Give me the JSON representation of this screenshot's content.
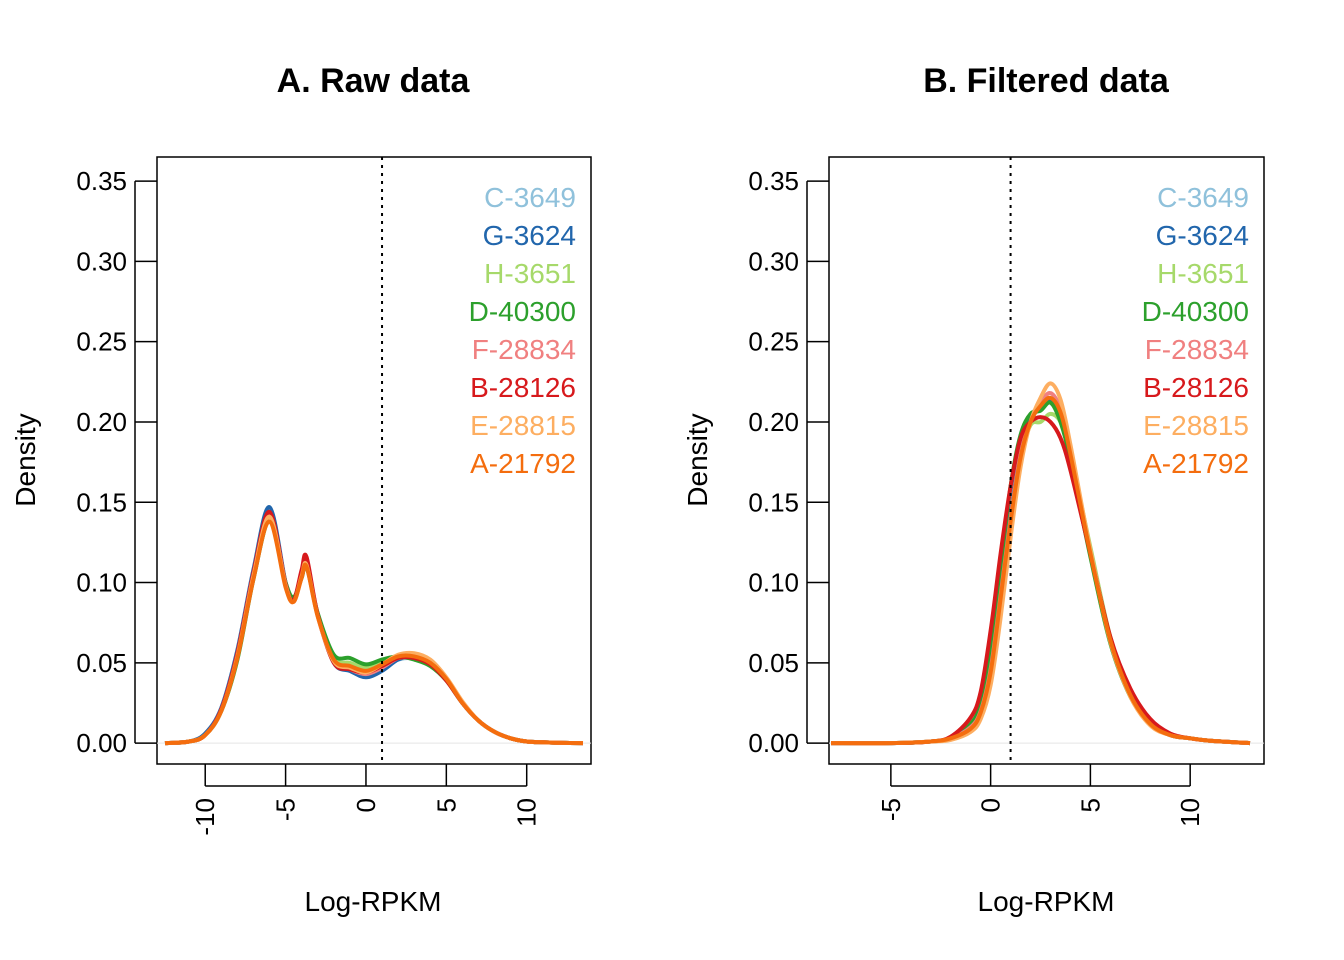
{
  "chart_data": [
    {
      "type": "line",
      "title": "A. Raw data",
      "xlabel": "Log-RPKM",
      "ylabel": "Density",
      "xlim": [
        -13,
        14
      ],
      "ylim": [
        -0.013,
        0.365
      ],
      "x_ticks": [
        -10,
        -5,
        0,
        5,
        10
      ],
      "y_ticks": [
        0.0,
        0.05,
        0.1,
        0.15,
        0.2,
        0.25,
        0.3,
        0.35
      ],
      "x_tick_labels": [
        "-10",
        "-5",
        "0",
        "5",
        "10"
      ],
      "y_tick_labels": [
        "0.00",
        "0.05",
        "0.10",
        "0.15",
        "0.20",
        "0.25",
        "0.30",
        "0.35"
      ],
      "vline": 1,
      "grid": false,
      "legend_position": "top-right",
      "series": [
        {
          "name": "C-3649",
          "color": "#8FC1DB",
          "x": [
            -12.5,
            -11,
            -10,
            -9,
            -8,
            -7,
            -6,
            -5,
            -4.5,
            -4,
            -3.7,
            -3,
            -2,
            -1,
            0,
            1,
            2,
            3,
            4,
            5,
            6,
            7,
            8,
            9,
            10,
            11,
            12,
            13.5
          ],
          "y": [
            0.0,
            0.001,
            0.005,
            0.02,
            0.055,
            0.105,
            0.144,
            0.1,
            0.088,
            0.105,
            0.112,
            0.08,
            0.051,
            0.047,
            0.043,
            0.047,
            0.052,
            0.053,
            0.05,
            0.04,
            0.025,
            0.014,
            0.007,
            0.003,
            0.001,
            0.0005,
            0.0002,
            0.0
          ]
        },
        {
          "name": "G-3624",
          "color": "#2166AC",
          "x": [
            -12.5,
            -11,
            -10,
            -9,
            -8,
            -7,
            -6,
            -5,
            -4.5,
            -4,
            -3.7,
            -3,
            -2,
            -1,
            0,
            1,
            2,
            3,
            4,
            5,
            6,
            7,
            8,
            9,
            10,
            11,
            12,
            13.5
          ],
          "y": [
            0.0,
            0.001,
            0.006,
            0.022,
            0.058,
            0.108,
            0.147,
            0.1,
            0.089,
            0.106,
            0.113,
            0.08,
            0.05,
            0.045,
            0.041,
            0.045,
            0.052,
            0.054,
            0.05,
            0.04,
            0.025,
            0.014,
            0.007,
            0.003,
            0.001,
            0.0005,
            0.0002,
            0.0
          ]
        },
        {
          "name": "H-3651",
          "color": "#A6D96A",
          "x": [
            -12.5,
            -11,
            -10,
            -9,
            -8,
            -7,
            -6,
            -5,
            -4.5,
            -4,
            -3.7,
            -3,
            -2,
            -1,
            0,
            1,
            2,
            3,
            4,
            5,
            6,
            7,
            8,
            9,
            10,
            11,
            12,
            13.5
          ],
          "y": [
            0.0,
            0.001,
            0.005,
            0.02,
            0.054,
            0.104,
            0.141,
            0.1,
            0.09,
            0.104,
            0.111,
            0.08,
            0.053,
            0.05,
            0.047,
            0.05,
            0.053,
            0.053,
            0.05,
            0.04,
            0.025,
            0.014,
            0.007,
            0.003,
            0.001,
            0.0005,
            0.0002,
            0.0
          ]
        },
        {
          "name": "D-40300",
          "color": "#2CA02C",
          "x": [
            -12.5,
            -11,
            -10,
            -9,
            -8,
            -7,
            -6,
            -5,
            -4.5,
            -4,
            -3.7,
            -3,
            -2,
            -1,
            0,
            1,
            2,
            3,
            4,
            5,
            6,
            7,
            8,
            9,
            10,
            11,
            12,
            13.5
          ],
          "y": [
            0.0,
            0.001,
            0.005,
            0.02,
            0.052,
            0.102,
            0.138,
            0.1,
            0.091,
            0.103,
            0.11,
            0.081,
            0.055,
            0.053,
            0.049,
            0.052,
            0.054,
            0.052,
            0.048,
            0.039,
            0.025,
            0.014,
            0.007,
            0.003,
            0.001,
            0.0005,
            0.0002,
            0.0
          ]
        },
        {
          "name": "F-28834",
          "color": "#F08080",
          "x": [
            -12.5,
            -11,
            -10,
            -9,
            -8,
            -7,
            -6,
            -5,
            -4.5,
            -4,
            -3.7,
            -3,
            -2,
            -1,
            0,
            1,
            2,
            3,
            4,
            5,
            6,
            7,
            8,
            9,
            10,
            11,
            12,
            13.5
          ],
          "y": [
            0.0,
            0.001,
            0.005,
            0.021,
            0.056,
            0.106,
            0.143,
            0.099,
            0.088,
            0.106,
            0.113,
            0.079,
            0.051,
            0.046,
            0.043,
            0.047,
            0.053,
            0.054,
            0.05,
            0.04,
            0.025,
            0.014,
            0.007,
            0.003,
            0.001,
            0.0005,
            0.0002,
            0.0
          ]
        },
        {
          "name": "B-28126",
          "color": "#D7191C",
          "x": [
            -12.5,
            -11,
            -10,
            -9,
            -8,
            -7,
            -6,
            -5,
            -4.5,
            -4,
            -3.7,
            -3,
            -2,
            -1,
            0,
            1,
            2,
            3,
            4,
            5,
            6,
            7,
            8,
            9,
            10,
            11,
            12,
            13.5
          ],
          "y": [
            0.0,
            0.001,
            0.005,
            0.021,
            0.056,
            0.106,
            0.144,
            0.099,
            0.089,
            0.108,
            0.116,
            0.08,
            0.05,
            0.046,
            0.044,
            0.048,
            0.053,
            0.053,
            0.049,
            0.039,
            0.025,
            0.014,
            0.007,
            0.003,
            0.001,
            0.0005,
            0.0002,
            0.0
          ]
        },
        {
          "name": "E-28815",
          "color": "#FDAE61",
          "x": [
            -12.5,
            -11,
            -10,
            -9,
            -8,
            -7,
            -6,
            -5,
            -4.5,
            -4,
            -3.7,
            -3,
            -2,
            -1,
            0,
            1,
            2,
            3,
            4,
            5,
            6,
            7,
            8,
            9,
            10,
            11,
            12,
            13.5
          ],
          "y": [
            0.0,
            0.001,
            0.005,
            0.02,
            0.054,
            0.104,
            0.141,
            0.098,
            0.088,
            0.104,
            0.111,
            0.079,
            0.051,
            0.047,
            0.044,
            0.049,
            0.055,
            0.056,
            0.052,
            0.041,
            0.026,
            0.014,
            0.007,
            0.003,
            0.001,
            0.0005,
            0.0002,
            0.0
          ]
        },
        {
          "name": "A-21792",
          "color": "#F46D0E",
          "x": [
            -12.5,
            -11,
            -10,
            -9,
            -8,
            -7,
            -6,
            -5,
            -4.5,
            -4,
            -3.7,
            -3,
            -2,
            -1,
            0,
            1,
            2,
            3,
            4,
            5,
            6,
            7,
            8,
            9,
            10,
            11,
            12,
            13.5
          ],
          "y": [
            0.0,
            0.001,
            0.005,
            0.02,
            0.053,
            0.102,
            0.138,
            0.097,
            0.088,
            0.103,
            0.11,
            0.079,
            0.052,
            0.048,
            0.045,
            0.049,
            0.054,
            0.054,
            0.05,
            0.04,
            0.025,
            0.014,
            0.007,
            0.003,
            0.001,
            0.0005,
            0.0002,
            0.0
          ]
        }
      ]
    },
    {
      "type": "line",
      "title": "B. Filtered data",
      "xlabel": "Log-RPKM",
      "ylabel": "Density",
      "xlim": [
        -8.1,
        13.7
      ],
      "ylim": [
        -0.013,
        0.365
      ],
      "x_ticks": [
        -5,
        0,
        5,
        10
      ],
      "y_ticks": [
        0.0,
        0.05,
        0.1,
        0.15,
        0.2,
        0.25,
        0.3,
        0.35
      ],
      "x_tick_labels": [
        "-5",
        "0",
        "5",
        "10"
      ],
      "y_tick_labels": [
        "0.00",
        "0.05",
        "0.10",
        "0.15",
        "0.20",
        "0.25",
        "0.30",
        "0.35"
      ],
      "vline": 1,
      "grid": false,
      "legend_position": "top-right",
      "series": [
        {
          "name": "C-3649",
          "color": "#8FC1DB",
          "x": [
            -8,
            -5,
            -3,
            -2,
            -1,
            -0.5,
            0,
            0.5,
            1,
            1.5,
            2,
            2.5,
            3,
            3.5,
            4,
            5,
            6,
            7,
            8,
            9,
            10,
            11,
            13
          ],
          "y": [
            0.0,
            0.0,
            0.001,
            0.003,
            0.01,
            0.02,
            0.045,
            0.09,
            0.14,
            0.18,
            0.202,
            0.208,
            0.215,
            0.205,
            0.18,
            0.12,
            0.065,
            0.03,
            0.012,
            0.005,
            0.003,
            0.0015,
            0.0
          ]
        },
        {
          "name": "G-3624",
          "color": "#2166AC",
          "x": [
            -8,
            -5,
            -3,
            -2,
            -1,
            -0.5,
            0,
            0.5,
            1,
            1.5,
            2,
            2.5,
            3,
            3.5,
            4,
            5,
            6,
            7,
            8,
            9,
            10,
            11,
            13
          ],
          "y": [
            0.0,
            0.0,
            0.001,
            0.003,
            0.011,
            0.022,
            0.048,
            0.093,
            0.142,
            0.182,
            0.203,
            0.21,
            0.214,
            0.204,
            0.178,
            0.118,
            0.064,
            0.03,
            0.012,
            0.005,
            0.003,
            0.0015,
            0.0
          ]
        },
        {
          "name": "H-3651",
          "color": "#A6D96A",
          "x": [
            -8,
            -5,
            -3,
            -2,
            -1,
            -0.5,
            0,
            0.5,
            1,
            1.5,
            2,
            2.5,
            3,
            3.5,
            4,
            5,
            6,
            7,
            8,
            9,
            10,
            11,
            13
          ],
          "y": [
            0.0,
            0.0,
            0.001,
            0.003,
            0.009,
            0.018,
            0.042,
            0.088,
            0.138,
            0.178,
            0.198,
            0.2,
            0.205,
            0.2,
            0.18,
            0.122,
            0.066,
            0.031,
            0.012,
            0.005,
            0.003,
            0.0015,
            0.0
          ]
        },
        {
          "name": "D-40300",
          "color": "#2CA02C",
          "x": [
            -8,
            -5,
            -3,
            -2,
            -1,
            -0.5,
            0,
            0.5,
            1,
            1.5,
            2,
            2.5,
            3,
            3.5,
            4,
            5,
            6,
            7,
            8,
            9,
            10,
            11,
            13
          ],
          "y": [
            0.0,
            0.0,
            0.001,
            0.003,
            0.012,
            0.025,
            0.058,
            0.11,
            0.16,
            0.192,
            0.205,
            0.207,
            0.212,
            0.2,
            0.176,
            0.116,
            0.062,
            0.029,
            0.012,
            0.005,
            0.003,
            0.0015,
            0.0
          ]
        },
        {
          "name": "F-28834",
          "color": "#F08080",
          "x": [
            -8,
            -5,
            -3,
            -2,
            -1,
            -0.5,
            0,
            0.5,
            1,
            1.5,
            2,
            2.5,
            3,
            3.5,
            4,
            5,
            6,
            7,
            8,
            9,
            10,
            11,
            13
          ],
          "y": [
            0.0,
            0.0,
            0.001,
            0.003,
            0.01,
            0.02,
            0.046,
            0.092,
            0.14,
            0.18,
            0.2,
            0.212,
            0.218,
            0.208,
            0.182,
            0.12,
            0.064,
            0.03,
            0.012,
            0.005,
            0.003,
            0.0015,
            0.0
          ]
        },
        {
          "name": "B-28126",
          "color": "#D7191C",
          "x": [
            -8,
            -5,
            -3,
            -2,
            -1,
            -0.5,
            0,
            0.5,
            1,
            1.5,
            2,
            2.5,
            3,
            3.5,
            4,
            5,
            6,
            7,
            8,
            9,
            10,
            11,
            13
          ],
          "y": [
            0.0,
            0.0,
            0.001,
            0.004,
            0.016,
            0.032,
            0.07,
            0.118,
            0.16,
            0.19,
            0.2,
            0.203,
            0.2,
            0.19,
            0.17,
            0.118,
            0.066,
            0.034,
            0.015,
            0.006,
            0.003,
            0.0015,
            0.0
          ]
        },
        {
          "name": "E-28815",
          "color": "#FDAE61",
          "x": [
            -8,
            -5,
            -3,
            -2,
            -1,
            -0.5,
            0,
            0.5,
            1,
            1.5,
            2,
            2.5,
            3,
            3.5,
            4,
            5,
            6,
            7,
            8,
            9,
            10,
            11,
            13
          ],
          "y": [
            0.0,
            0.0,
            0.001,
            0.002,
            0.007,
            0.015,
            0.036,
            0.078,
            0.128,
            0.172,
            0.2,
            0.215,
            0.224,
            0.214,
            0.186,
            0.12,
            0.063,
            0.029,
            0.011,
            0.005,
            0.003,
            0.0015,
            0.0
          ]
        },
        {
          "name": "A-21792",
          "color": "#F46D0E",
          "x": [
            -8,
            -5,
            -3,
            -2,
            -1,
            -0.5,
            0,
            0.5,
            1,
            1.5,
            2,
            2.5,
            3,
            3.5,
            4,
            5,
            6,
            7,
            8,
            9,
            10,
            11,
            13
          ],
          "y": [
            0.0,
            0.0,
            0.001,
            0.003,
            0.009,
            0.019,
            0.044,
            0.09,
            0.138,
            0.178,
            0.2,
            0.21,
            0.215,
            0.206,
            0.18,
            0.118,
            0.064,
            0.03,
            0.012,
            0.005,
            0.003,
            0.0015,
            0.0
          ]
        }
      ]
    }
  ]
}
